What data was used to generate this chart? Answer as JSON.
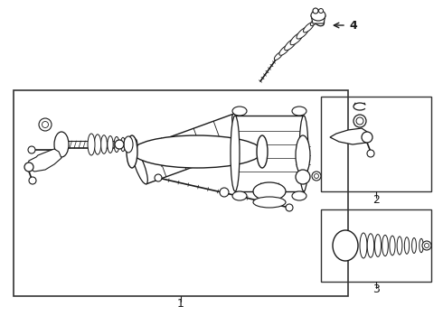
{
  "background_color": "#ffffff",
  "line_color": "#1a1a1a",
  "fig_width": 4.9,
  "fig_height": 3.6,
  "dpi": 100,
  "label1": "1",
  "label2": "2",
  "label3": "3",
  "label4": "4"
}
